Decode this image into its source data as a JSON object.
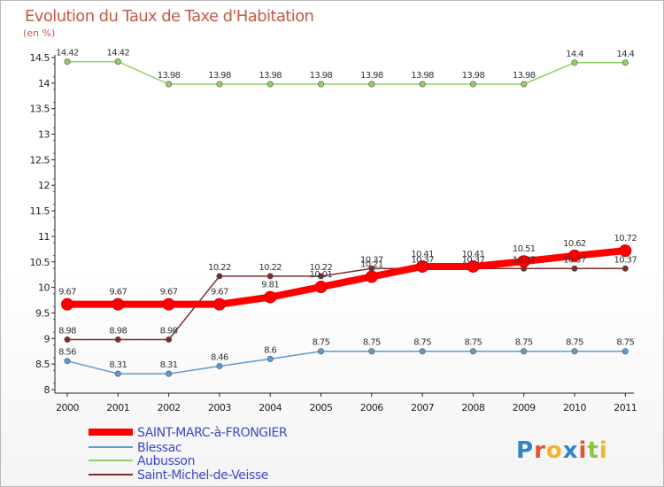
{
  "chart_data": {
    "type": "line",
    "title": "Evolution du Taux de Taxe d'Habitation",
    "unit_label": "(en %)",
    "x": [
      "2000",
      "2001",
      "2002",
      "2003",
      "2004",
      "2005",
      "2006",
      "2007",
      "2008",
      "2009",
      "2010",
      "2011"
    ],
    "ylim": [
      8,
      14.5
    ],
    "yticks": [
      "8",
      "8.5",
      "9",
      "9.5",
      "10",
      "10.5",
      "11",
      "11.5",
      "12",
      "12.5",
      "13",
      "13.5",
      "14",
      "14.5"
    ],
    "grid": false,
    "legend_position": "bottom-left",
    "series": [
      {
        "name": "SAINT-MARC-à-FRONGIER",
        "color": "#ff0000",
        "values": [
          9.67,
          9.67,
          9.67,
          9.67,
          9.81,
          10.01,
          10.21,
          10.41,
          10.41,
          10.51,
          10.62,
          10.72
        ],
        "labels": [
          "9.67",
          "9.67",
          "9.67",
          "9.67",
          "9.81",
          "10.01",
          "10.21",
          "10.41",
          "10.41",
          "10.51",
          "10.62",
          "10.72"
        ]
      },
      {
        "name": "Blessac",
        "color": "#5b9bd5",
        "values": [
          8.56,
          8.31,
          8.31,
          8.46,
          8.6,
          8.75,
          8.75,
          8.75,
          8.75,
          8.75,
          8.75,
          8.75
        ],
        "labels": [
          "8.56",
          "8.31",
          "8.31",
          "8.46",
          "8.6",
          "8.75",
          "8.75",
          "8.75",
          "8.75",
          "8.75",
          "8.75",
          "8.75"
        ]
      },
      {
        "name": "Aubusson",
        "color": "#8fd066",
        "values": [
          14.42,
          14.42,
          13.98,
          13.98,
          13.98,
          13.98,
          13.98,
          13.98,
          13.98,
          13.98,
          14.4,
          14.4
        ],
        "labels": [
          "14.42",
          "14.42",
          "13.98",
          "13.98",
          "13.98",
          "13.98",
          "13.98",
          "13.98",
          "13.98",
          "13.98",
          "14.4",
          "14.4"
        ]
      },
      {
        "name": "Saint-Michel-de-Veisse",
        "color": "#7b2d2d",
        "values": [
          8.98,
          8.98,
          8.98,
          10.22,
          10.22,
          10.22,
          10.37,
          10.37,
          10.37,
          10.37,
          10.37,
          10.37
        ],
        "labels": [
          "8.98",
          "8.98",
          "8.98",
          "10.22",
          "10.22",
          "10.22",
          "10.37",
          "10.37",
          "10.37",
          "10.37",
          "10.37",
          "10.37"
        ]
      }
    ]
  },
  "logo": {
    "text": "Proxiti",
    "letter_colors": [
      "#2e86c8",
      "#e2552b",
      "#f0b42a",
      "#2e86c8",
      "#e2552b",
      "#8cc63f",
      "#f0b42a"
    ]
  }
}
